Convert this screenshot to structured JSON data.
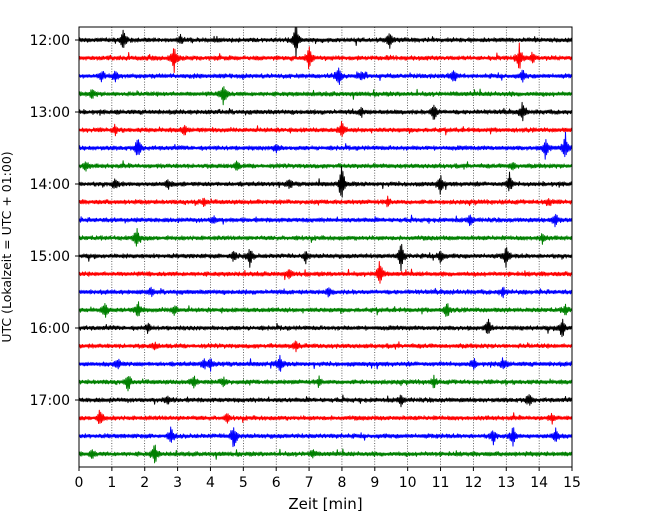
{
  "chart_data": {
    "type": "line",
    "chart_kind": "helicorder",
    "xlabel": "Zeit  [min]",
    "ylabel": "UTC (Lokalzeit = UTC + 01:00)",
    "xlim": [
      0,
      15
    ],
    "xticks": [
      "0",
      "1",
      "2",
      "3",
      "4",
      "5",
      "6",
      "7",
      "8",
      "9",
      "10",
      "11",
      "12",
      "13",
      "14",
      "15"
    ],
    "ytick_labels": [
      "12:00",
      "13:00",
      "14:00",
      "15:00",
      "16:00",
      "17:00"
    ],
    "rows_per_hour": 4,
    "minutes_per_row": 15,
    "grid": "vertical dotted lines at each minute",
    "line_colors": [
      "#000000",
      "#ff0000",
      "#0000ff",
      "#008000"
    ],
    "rows": [
      {
        "start": "12:00",
        "color": "#000000",
        "events": [
          {
            "t": 1.35,
            "amp": 1.0
          },
          {
            "t": 6.6,
            "amp": 1.6
          },
          {
            "t": 9.45,
            "amp": 1.0
          },
          {
            "t": 3.1,
            "amp": 0.4
          }
        ]
      },
      {
        "start": "12:15",
        "color": "#ff0000",
        "events": [
          {
            "t": 2.9,
            "amp": 1.3
          },
          {
            "t": 7.0,
            "amp": 1.1
          },
          {
            "t": 13.4,
            "amp": 1.3
          },
          {
            "t": 13.8,
            "amp": 0.5
          }
        ]
      },
      {
        "start": "12:30",
        "color": "#0000ff",
        "events": [
          {
            "t": 0.7,
            "amp": 0.5
          },
          {
            "t": 1.1,
            "amp": 0.5
          },
          {
            "t": 7.9,
            "amp": 0.9
          },
          {
            "t": 8.6,
            "amp": 0.5
          },
          {
            "t": 11.4,
            "amp": 0.7
          },
          {
            "t": 13.5,
            "amp": 0.5
          }
        ]
      },
      {
        "start": "12:45",
        "color": "#008000",
        "events": [
          {
            "t": 4.4,
            "amp": 1.2
          },
          {
            "t": 0.4,
            "amp": 0.4
          }
        ]
      },
      {
        "start": "13:00",
        "color": "#000000",
        "events": [
          {
            "t": 10.8,
            "amp": 0.9
          },
          {
            "t": 13.5,
            "amp": 1.0
          },
          {
            "t": 8.6,
            "amp": 0.4
          }
        ]
      },
      {
        "start": "13:15",
        "color": "#ff0000",
        "events": [
          {
            "t": 8.0,
            "amp": 0.8
          },
          {
            "t": 3.2,
            "amp": 0.5
          },
          {
            "t": 1.1,
            "amp": 0.4
          }
        ]
      },
      {
        "start": "13:30",
        "color": "#0000ff",
        "events": [
          {
            "t": 1.8,
            "amp": 1.1
          },
          {
            "t": 14.2,
            "amp": 1.2
          },
          {
            "t": 14.8,
            "amp": 1.5
          },
          {
            "t": 6.0,
            "amp": 0.4
          }
        ]
      },
      {
        "start": "13:45",
        "color": "#008000",
        "events": [
          {
            "t": 0.2,
            "amp": 0.5
          },
          {
            "t": 4.8,
            "amp": 0.4
          },
          {
            "t": 13.2,
            "amp": 0.4
          }
        ]
      },
      {
        "start": "14:00",
        "color": "#000000",
        "events": [
          {
            "t": 1.1,
            "amp": 0.5
          },
          {
            "t": 2.7,
            "amp": 0.5
          },
          {
            "t": 8.0,
            "amp": 1.8
          },
          {
            "t": 11.0,
            "amp": 0.9
          },
          {
            "t": 13.1,
            "amp": 0.9
          },
          {
            "t": 6.4,
            "amp": 0.4
          }
        ]
      },
      {
        "start": "14:15",
        "color": "#ff0000",
        "events": [
          {
            "t": 3.8,
            "amp": 0.4
          },
          {
            "t": 9.4,
            "amp": 0.4
          },
          {
            "t": 14.3,
            "amp": 0.4
          }
        ]
      },
      {
        "start": "14:30",
        "color": "#0000ff",
        "events": [
          {
            "t": 11.9,
            "amp": 0.6
          },
          {
            "t": 14.5,
            "amp": 0.8
          },
          {
            "t": 4.1,
            "amp": 0.4
          }
        ]
      },
      {
        "start": "14:45",
        "color": "#008000",
        "events": [
          {
            "t": 1.75,
            "amp": 1.0
          },
          {
            "t": 14.1,
            "amp": 0.5
          }
        ]
      },
      {
        "start": "15:00",
        "color": "#000000",
        "events": [
          {
            "t": 4.7,
            "amp": 0.6
          },
          {
            "t": 5.2,
            "amp": 0.9
          },
          {
            "t": 9.8,
            "amp": 1.3
          },
          {
            "t": 11.0,
            "amp": 0.8
          },
          {
            "t": 13.0,
            "amp": 1.0
          },
          {
            "t": 6.9,
            "amp": 0.5
          }
        ]
      },
      {
        "start": "15:15",
        "color": "#ff0000",
        "events": [
          {
            "t": 9.15,
            "amp": 1.5
          },
          {
            "t": 6.4,
            "amp": 0.4
          }
        ]
      },
      {
        "start": "15:30",
        "color": "#0000ff",
        "events": [
          {
            "t": 2.2,
            "amp": 0.4
          },
          {
            "t": 7.6,
            "amp": 0.4
          },
          {
            "t": 12.9,
            "amp": 0.5
          }
        ]
      },
      {
        "start": "15:45",
        "color": "#008000",
        "events": [
          {
            "t": 0.8,
            "amp": 0.7
          },
          {
            "t": 1.8,
            "amp": 0.8
          },
          {
            "t": 2.9,
            "amp": 0.5
          },
          {
            "t": 11.2,
            "amp": 0.8
          },
          {
            "t": 14.8,
            "amp": 0.5
          }
        ]
      },
      {
        "start": "16:00",
        "color": "#000000",
        "events": [
          {
            "t": 12.45,
            "amp": 0.8
          },
          {
            "t": 14.7,
            "amp": 1.1
          },
          {
            "t": 2.1,
            "amp": 0.4
          }
        ]
      },
      {
        "start": "16:15",
        "color": "#ff0000",
        "events": [
          {
            "t": 6.6,
            "amp": 0.5
          },
          {
            "t": 2.3,
            "amp": 0.3
          }
        ]
      },
      {
        "start": "16:30",
        "color": "#0000ff",
        "events": [
          {
            "t": 1.2,
            "amp": 0.5
          },
          {
            "t": 3.8,
            "amp": 0.5
          },
          {
            "t": 4.0,
            "amp": 0.5
          },
          {
            "t": 6.1,
            "amp": 0.9
          },
          {
            "t": 12.0,
            "amp": 0.5
          },
          {
            "t": 12.9,
            "amp": 0.6
          }
        ]
      },
      {
        "start": "16:45",
        "color": "#008000",
        "events": [
          {
            "t": 1.5,
            "amp": 0.8
          },
          {
            "t": 3.5,
            "amp": 0.6
          },
          {
            "t": 4.4,
            "amp": 0.5
          },
          {
            "t": 10.8,
            "amp": 0.5
          },
          {
            "t": 7.3,
            "amp": 0.4
          }
        ]
      },
      {
        "start": "17:00",
        "color": "#000000",
        "events": [
          {
            "t": 9.8,
            "amp": 0.6
          },
          {
            "t": 13.7,
            "amp": 0.6
          },
          {
            "t": 2.7,
            "amp": 0.4
          }
        ]
      },
      {
        "start": "17:15",
        "color": "#ff0000",
        "events": [
          {
            "t": 0.65,
            "amp": 0.9
          },
          {
            "t": 4.5,
            "amp": 0.4
          },
          {
            "t": 14.4,
            "amp": 0.4
          }
        ]
      },
      {
        "start": "17:30",
        "color": "#0000ff",
        "events": [
          {
            "t": 2.8,
            "amp": 0.8
          },
          {
            "t": 4.7,
            "amp": 1.4
          },
          {
            "t": 12.6,
            "amp": 0.8
          },
          {
            "t": 13.2,
            "amp": 0.9
          },
          {
            "t": 14.5,
            "amp": 0.8
          }
        ]
      },
      {
        "start": "17:45",
        "color": "#008000",
        "events": [
          {
            "t": 2.3,
            "amp": 1.1
          },
          {
            "t": 0.4,
            "amp": 0.4
          },
          {
            "t": 7.1,
            "amp": 0.4
          }
        ]
      }
    ]
  }
}
